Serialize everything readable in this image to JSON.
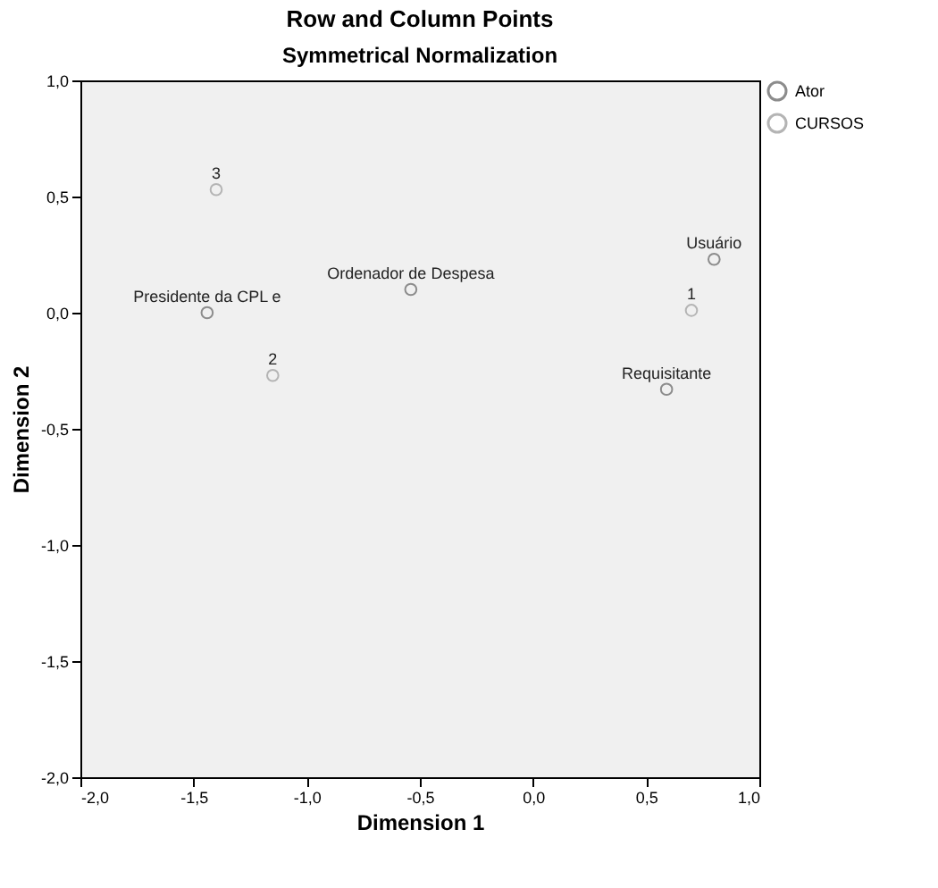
{
  "chart_data": {
    "type": "scatter",
    "title": "Row and Column Points",
    "subtitle": "Symmetrical Normalization",
    "xlabel": "Dimension 1",
    "ylabel": "Dimension 2",
    "series": [
      {
        "name": "Ator",
        "color": "#8c8c8c",
        "x": [
          -1.44,
          -0.54,
          0.8,
          0.59
        ],
        "values": [
          0.0,
          0.1,
          0.23,
          -0.33
        ]
      },
      {
        "name": "CURSOS",
        "color": "#b4b4b4",
        "x": [
          0.7,
          -1.15,
          -1.4
        ],
        "values": [
          0.01,
          -0.27,
          0.53
        ]
      }
    ],
    "annotations": [
      {
        "text": "Presidente da CPL e",
        "x": -1.44,
        "y": 0.0
      },
      {
        "text": "Ordenador de Despesa",
        "x": -0.54,
        "y": 0.1
      },
      {
        "text": "Usuário",
        "x": 0.8,
        "y": 0.23
      },
      {
        "text": "Requisitante",
        "x": 0.59,
        "y": -0.33
      },
      {
        "text": "1",
        "x": 0.7,
        "y": 0.01
      },
      {
        "text": "2",
        "x": -1.15,
        "y": -0.27
      },
      {
        "text": "3",
        "x": -1.4,
        "y": 0.53
      }
    ],
    "xlim": [
      -2.0,
      1.0
    ],
    "ylim": [
      -2.0,
      1.0
    ],
    "xticks": [
      {
        "value": -2.0,
        "label": "-2,0"
      },
      {
        "value": -1.5,
        "label": "-1,5"
      },
      {
        "value": -1.0,
        "label": "-1,0"
      },
      {
        "value": -0.5,
        "label": "-0,5"
      },
      {
        "value": 0.0,
        "label": "0,0"
      },
      {
        "value": 0.5,
        "label": "0,5"
      },
      {
        "value": 1.0,
        "label": "1,0"
      }
    ],
    "yticks": [
      {
        "value": -2.0,
        "label": "-2,0"
      },
      {
        "value": -1.5,
        "label": "-1,5"
      },
      {
        "value": -1.0,
        "label": "-1,0"
      },
      {
        "value": -0.5,
        "label": "-0,5"
      },
      {
        "value": 0.0,
        "label": "0,0"
      },
      {
        "value": 0.5,
        "label": "0,5"
      },
      {
        "value": 1.0,
        "label": "1,0"
      }
    ],
    "marker": "circle",
    "grid": false,
    "legend": "right"
  }
}
